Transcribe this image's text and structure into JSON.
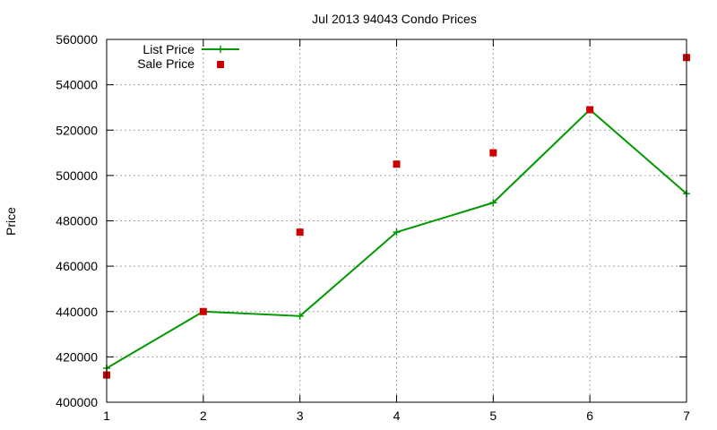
{
  "chart_data": {
    "type": "line",
    "title": "Jul 2013 94043 Condo Prices",
    "xlabel": "",
    "ylabel": "Price",
    "xlim": [
      1,
      7
    ],
    "ylim": [
      400000,
      560000
    ],
    "x_ticks": [
      1,
      2,
      3,
      4,
      5,
      6,
      7
    ],
    "y_ticks": [
      400000,
      420000,
      440000,
      460000,
      480000,
      500000,
      520000,
      540000,
      560000
    ],
    "grid": true,
    "legend_position": "top-left",
    "series": [
      {
        "name": "List Price",
        "style": "line-plus",
        "color": "#009900",
        "x": [
          1,
          2,
          3,
          4,
          5,
          6,
          7
        ],
        "values": [
          415000,
          440000,
          438000,
          475000,
          488000,
          529000,
          492000
        ]
      },
      {
        "name": "Sale Price",
        "style": "square-points",
        "color": "#cc0000",
        "x": [
          1,
          2,
          3,
          4,
          5,
          6,
          7
        ],
        "values": [
          412000,
          440000,
          475000,
          505000,
          510000,
          529000,
          552000
        ]
      }
    ]
  }
}
